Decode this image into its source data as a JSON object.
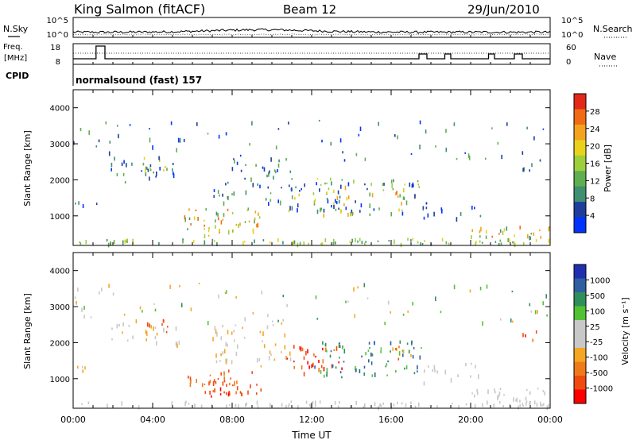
{
  "header": {
    "station": "King Salmon (fitACF)",
    "beam": "Beam 12",
    "date": "29/Jun/2010"
  },
  "side_labels": {
    "nsky": "N.Sky",
    "freq_line1": "Freq.",
    "freq_line2": "[MHz]",
    "cpid": "CPID",
    "nsearch": "N.Search",
    "nave": "Nave"
  },
  "cpid_text": "normalsound (fast) 157",
  "colors": {
    "power_scale": [
      "#0033ff",
      "#1f3d9a",
      "#3f8f73",
      "#5fae4f",
      "#9dcf3a",
      "#e8d21a",
      "#f5a21e",
      "#f06b14",
      "#e32818"
    ],
    "velocity_scale": [
      "#ff0000",
      "#f04a10",
      "#f07a1a",
      "#f5a623",
      "#c8c8c8",
      "#c8c8c8",
      "#53c134",
      "#2e8f5a",
      "#2f5fa0",
      "#1f2fb0"
    ]
  },
  "chart_data": [
    {
      "type": "line",
      "name": "nsky-nsearch",
      "title": "",
      "x_ticks": [
        "00:00",
        "04:00",
        "08:00",
        "12:00",
        "16:00",
        "20:00",
        "00:00"
      ],
      "left_ticks": [
        "10^5",
        "10^0"
      ],
      "right_ticks": [
        "10^5",
        "10^0"
      ]
    },
    {
      "type": "line",
      "name": "freq-nave",
      "left_ticks": [
        "18",
        "8"
      ],
      "right_ticks": [
        "60",
        "0"
      ]
    },
    {
      "type": "heatmap",
      "name": "power",
      "ylabel": "Slant Range [km]",
      "yticks": [
        "4000",
        "3000",
        "2000",
        "1000"
      ],
      "ylim": [
        180,
        4500
      ],
      "x_range_hours": [
        0,
        24
      ],
      "colorbar_label": "Power [dB]",
      "colorbar_ticks": [
        "28",
        "24",
        "20",
        "16",
        "12",
        "8",
        "4"
      ]
    },
    {
      "type": "heatmap",
      "name": "velocity",
      "ylabel": "Slant Range [km]",
      "yticks": [
        "4000",
        "3000",
        "2000",
        "1000"
      ],
      "ylim": [
        180,
        4500
      ],
      "x_range_hours": [
        0,
        24
      ],
      "xlabel": "Time UT",
      "xticks": [
        "00:00",
        "04:00",
        "08:00",
        "12:00",
        "16:00",
        "20:00",
        "00:00"
      ],
      "colorbar_label": "Velocity [m s⁻¹]",
      "colorbar_ticks": [
        "1000",
        "500",
        "100",
        "25",
        "-25",
        "-100",
        "-500",
        "-1000"
      ]
    }
  ]
}
